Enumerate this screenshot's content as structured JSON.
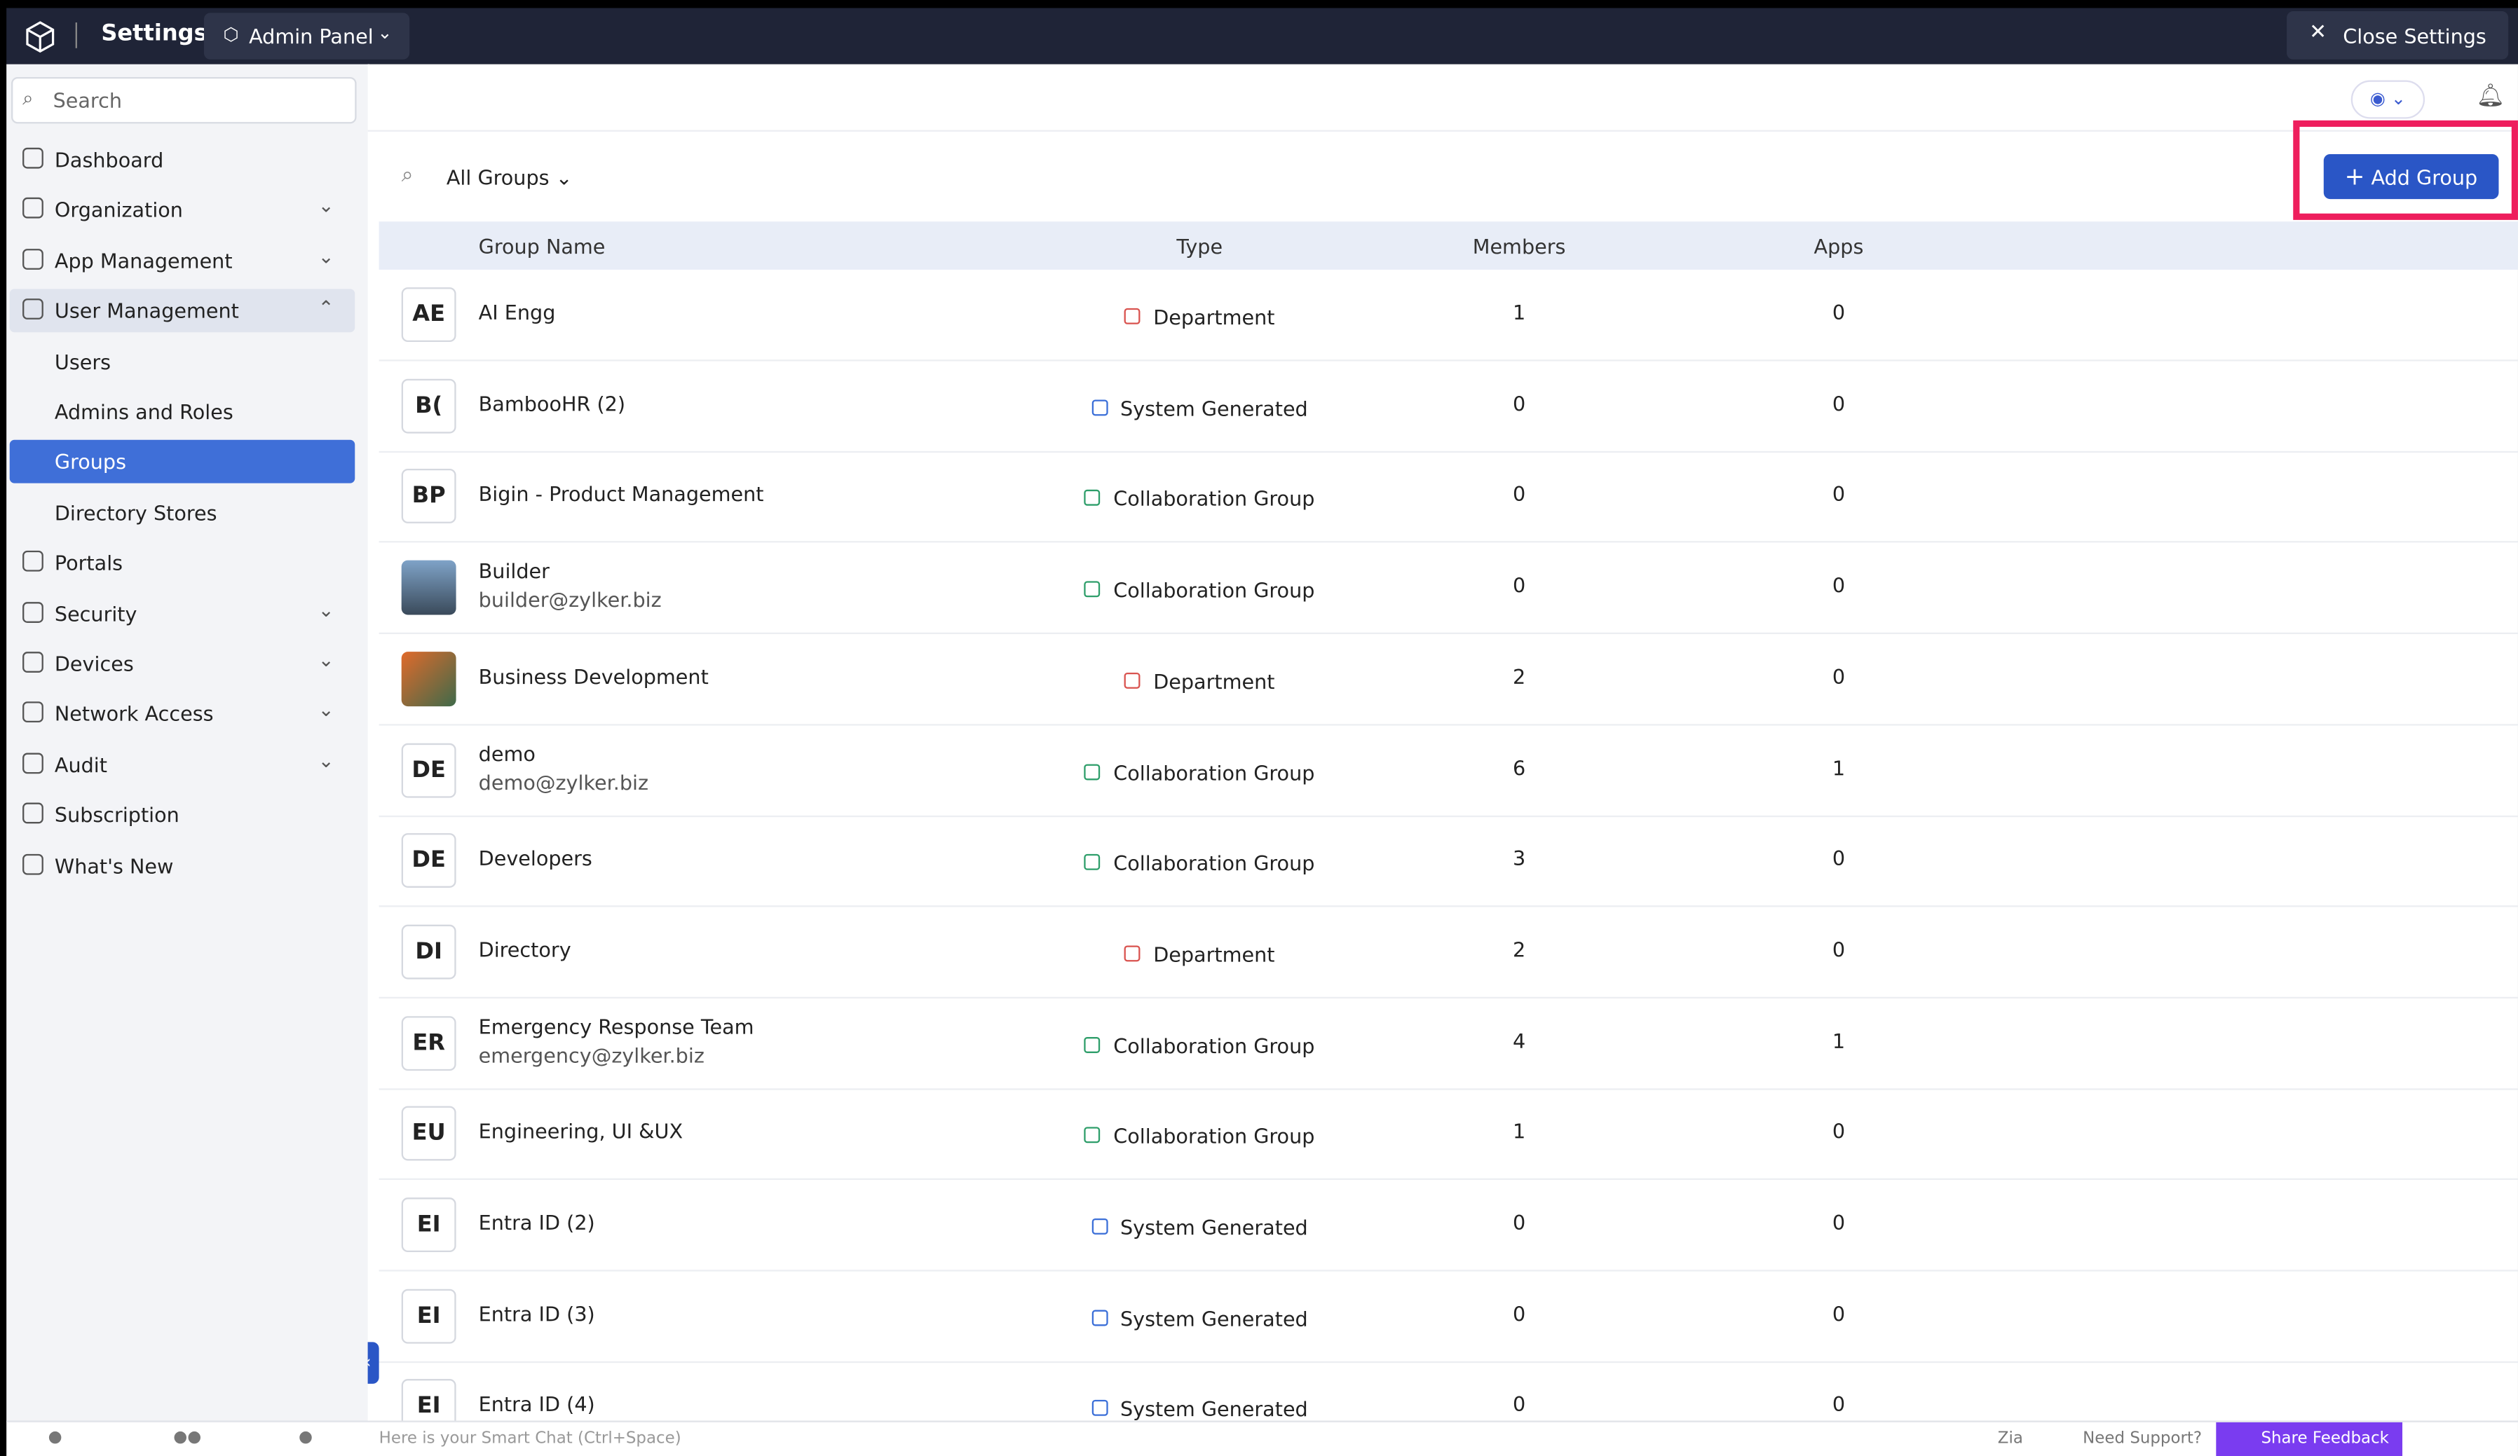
{
  "header": {
    "title": "Settings",
    "panel": "Admin Panel",
    "close": "Close Settings"
  },
  "sidebar": {
    "search": "Search",
    "items": [
      {
        "label": "Dashboard",
        "level": 1,
        "expandable": false
      },
      {
        "label": "Organization",
        "level": 1,
        "expandable": true
      },
      {
        "label": "App Management",
        "level": 1,
        "expandable": true
      },
      {
        "label": "User Management",
        "level": 1,
        "expandable": true,
        "expanded": true
      },
      {
        "label": "Users",
        "level": 2,
        "expandable": false
      },
      {
        "label": "Admins and Roles",
        "level": 2,
        "expandable": false
      },
      {
        "label": "Groups",
        "level": 2,
        "expandable": false,
        "active": true
      },
      {
        "label": "Directory Stores",
        "level": 2,
        "expandable": false
      },
      {
        "label": "Portals",
        "level": 1,
        "expandable": false
      },
      {
        "label": "Security",
        "level": 1,
        "expandable": true
      },
      {
        "label": "Devices",
        "level": 1,
        "expandable": true
      },
      {
        "label": "Network Access",
        "level": 1,
        "expandable": true
      },
      {
        "label": "Audit",
        "level": 1,
        "expandable": true
      },
      {
        "label": "Subscription",
        "level": 1,
        "expandable": false
      },
      {
        "label": "What's New",
        "level": 1,
        "expandable": false
      }
    ]
  },
  "toolbar": {
    "filter": "All Groups",
    "add_button": "Add Group"
  },
  "table": {
    "columns": [
      "Group Name",
      "Type",
      "Members",
      "Apps"
    ],
    "rows": [
      {
        "initials": "AE",
        "name": "AI Engg",
        "type": "Department",
        "members": "1",
        "apps": "0"
      },
      {
        "initials": "B(",
        "name": "BambooHR (2)",
        "type": "System Generated",
        "members": "0",
        "apps": "0"
      },
      {
        "initials": "BP",
        "name": "Bigin - Product Management",
        "type": "Collaboration Group",
        "members": "0",
        "apps": "0"
      },
      {
        "name": "Builder",
        "email": "builder@zylker.biz",
        "type": "Collaboration Group",
        "members": "0",
        "apps": "0"
      },
      {
        "name": "Business Development",
        "type": "Department",
        "members": "2",
        "apps": "0"
      },
      {
        "initials": "DE",
        "name": "demo",
        "email": "demo@zylker.biz",
        "type": "Collaboration Group",
        "members": "6",
        "apps": "1"
      },
      {
        "initials": "DE",
        "name": "Developers",
        "type": "Collaboration Group",
        "members": "3",
        "apps": "0"
      },
      {
        "initials": "DI",
        "name": "Directory",
        "type": "Department",
        "members": "2",
        "apps": "0"
      },
      {
        "initials": "ER",
        "name": "Emergency Response Team",
        "email": "emergency@zylker.biz",
        "type": "Collaboration Group",
        "members": "4",
        "apps": "1"
      },
      {
        "initials": "EU",
        "name": "Engineering, UI &UX",
        "type": "Collaboration Group",
        "members": "1",
        "apps": "0"
      },
      {
        "initials": "EI",
        "name": "Entra ID (2)",
        "type": "System Generated",
        "members": "0",
        "apps": "0"
      },
      {
        "initials": "EI",
        "name": "Entra ID (3)",
        "type": "System Generated",
        "members": "0",
        "apps": "0"
      },
      {
        "initials": "EI",
        "name": "Entra ID (4)",
        "type": "System Generated",
        "members": "0",
        "apps": "0"
      }
    ]
  },
  "footer": {
    "chat": "Here is your Smart Chat (Ctrl+Space)",
    "zia": "Zia",
    "support": "Need Support?",
    "feedback": "Share Feedback"
  }
}
